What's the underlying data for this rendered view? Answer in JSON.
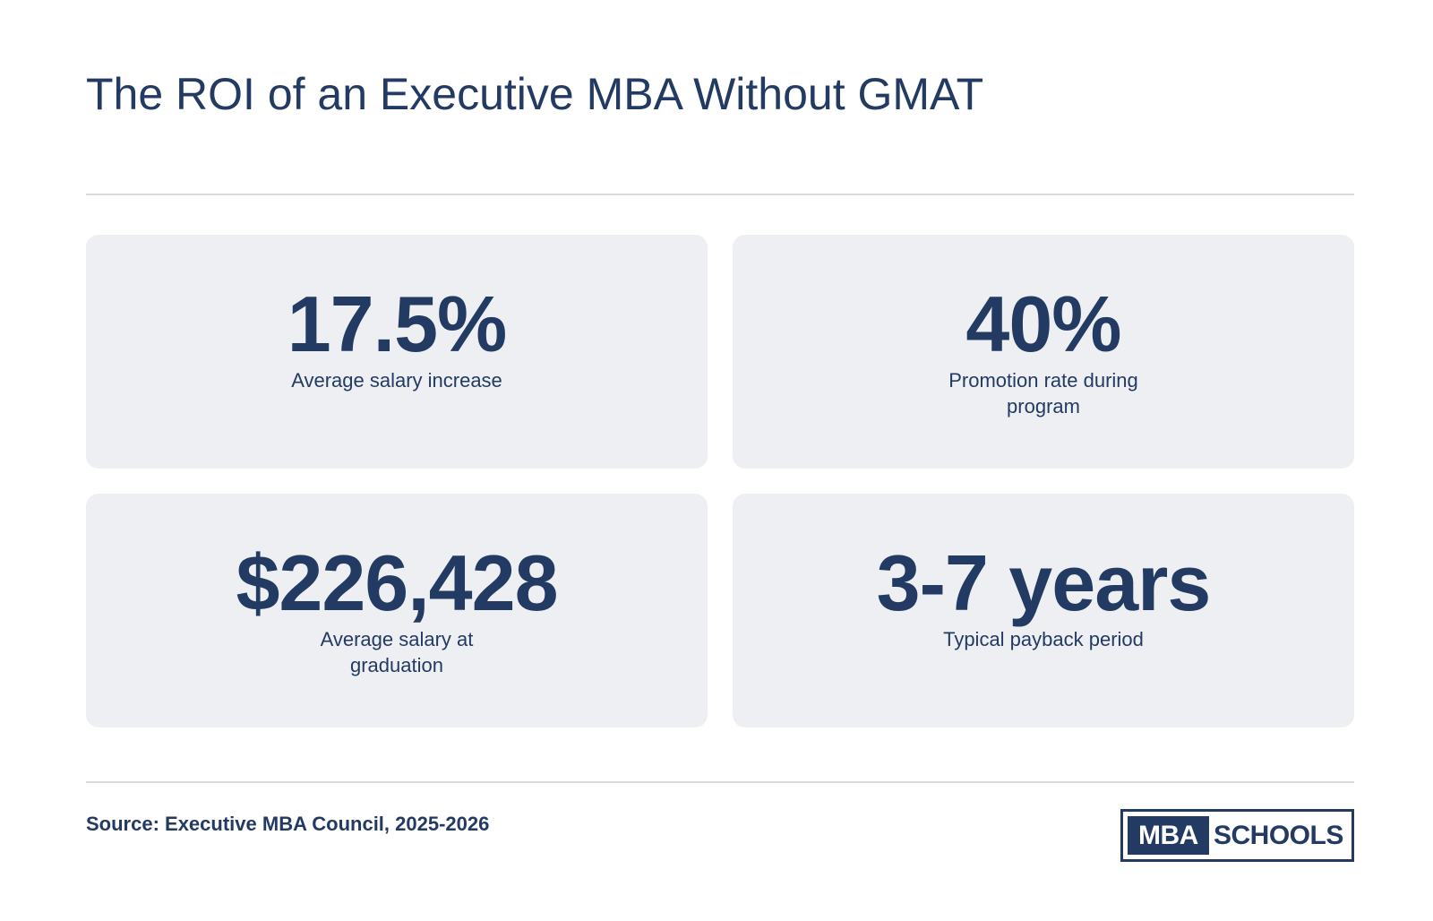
{
  "header": {
    "title": "The ROI of an Executive MBA Without GMAT"
  },
  "stats": [
    {
      "value": "17.5%",
      "label": "Average salary increase"
    },
    {
      "value": "40%",
      "label": "Promotion rate during program"
    },
    {
      "value": "$226,428",
      "label": "Average salary at graduation"
    },
    {
      "value": "3-7 years",
      "label": "Typical payback period"
    }
  ],
  "footer": {
    "source": "Source: Executive MBA Council, 2025-2026",
    "logo": {
      "boxed_text": "MBA",
      "text": "SCHOOLS"
    }
  },
  "colors": {
    "text": "#233a63",
    "card_background": "#eeeff2",
    "divider": "#d8d9dd"
  }
}
